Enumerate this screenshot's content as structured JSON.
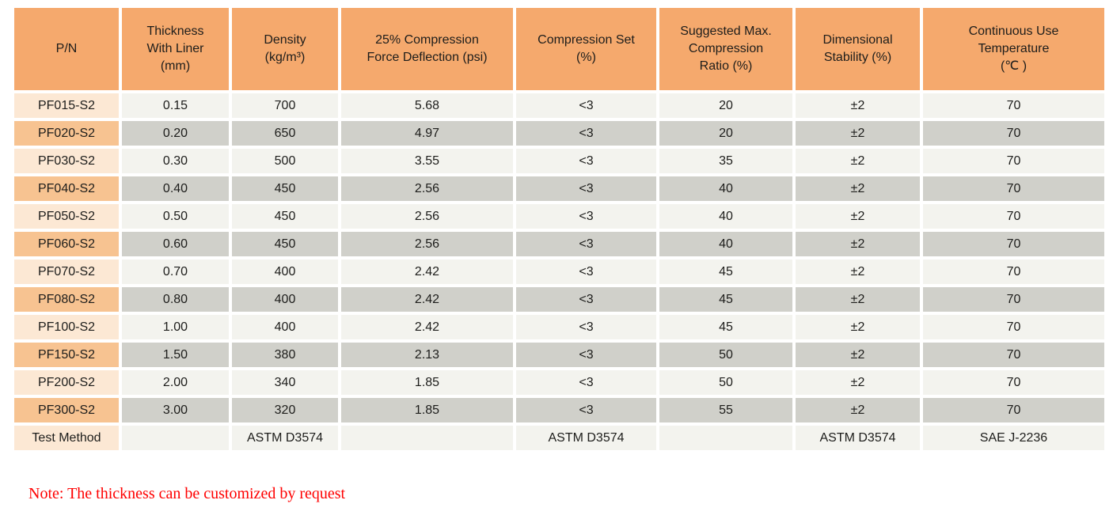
{
  "table": {
    "headers": [
      "P/N",
      "Thickness\nWith Liner\n(mm)",
      "Density\n(kg/m³)",
      "25% Compression\nForce Deflection (psi)",
      "Compression Set\n(%)",
      "Suggested Max.\nCompression\nRatio (%)",
      "Dimensional\nStability (%)",
      "Continuous Use\nTemperature\n(℃ )"
    ],
    "rows": [
      {
        "pn": "PF015-S2",
        "values": [
          "0.15",
          "700",
          "5.68",
          "<3",
          "20",
          "±2",
          "70"
        ]
      },
      {
        "pn": "PF020-S2",
        "values": [
          "0.20",
          "650",
          "4.97",
          "<3",
          "20",
          "±2",
          "70"
        ]
      },
      {
        "pn": "PF030-S2",
        "values": [
          "0.30",
          "500",
          "3.55",
          "<3",
          "35",
          "±2",
          "70"
        ]
      },
      {
        "pn": "PF040-S2",
        "values": [
          "0.40",
          "450",
          "2.56",
          "<3",
          "40",
          "±2",
          "70"
        ]
      },
      {
        "pn": "PF050-S2",
        "values": [
          "0.50",
          "450",
          "2.56",
          "<3",
          "40",
          "±2",
          "70"
        ]
      },
      {
        "pn": "PF060-S2",
        "values": [
          "0.60",
          "450",
          "2.56",
          "<3",
          "40",
          "±2",
          "70"
        ]
      },
      {
        "pn": "PF070-S2",
        "values": [
          "0.70",
          "400",
          "2.42",
          "<3",
          "45",
          "±2",
          "70"
        ]
      },
      {
        "pn": "PF080-S2",
        "values": [
          "0.80",
          "400",
          "2.42",
          "<3",
          "45",
          "±2",
          "70"
        ]
      },
      {
        "pn": "PF100-S2",
        "values": [
          "1.00",
          "400",
          "2.42",
          "<3",
          "45",
          "±2",
          "70"
        ]
      },
      {
        "pn": "PF150-S2",
        "values": [
          "1.50",
          "380",
          "2.13",
          "<3",
          "50",
          "±2",
          "70"
        ]
      },
      {
        "pn": "PF200-S2",
        "values": [
          "2.00",
          "340",
          "1.85",
          "<3",
          "50",
          "±2",
          "70"
        ]
      },
      {
        "pn": "PF300-S2",
        "values": [
          "3.00",
          "320",
          "1.85",
          "<3",
          "55",
          "±2",
          "70"
        ]
      },
      {
        "pn": "Test Method",
        "values": [
          "",
          "ASTM D3574",
          "",
          "ASTM D3574",
          "",
          "ASTM D3574",
          "SAE J-2236"
        ]
      }
    ]
  },
  "note": {
    "text": "Note: The thickness can be customized by request"
  },
  "colors": {
    "header_bg": "#F5A96D",
    "pn_row_odd_bg": "#FCE8D4",
    "pn_row_even_bg": "#F7C391",
    "value_odd_bg": "#F3F3EE",
    "value_even_bg": "#D0D0CA",
    "note_text": "#FF0000",
    "body_text": "#1D1D1B",
    "page_bg": "#FFFFFF"
  }
}
